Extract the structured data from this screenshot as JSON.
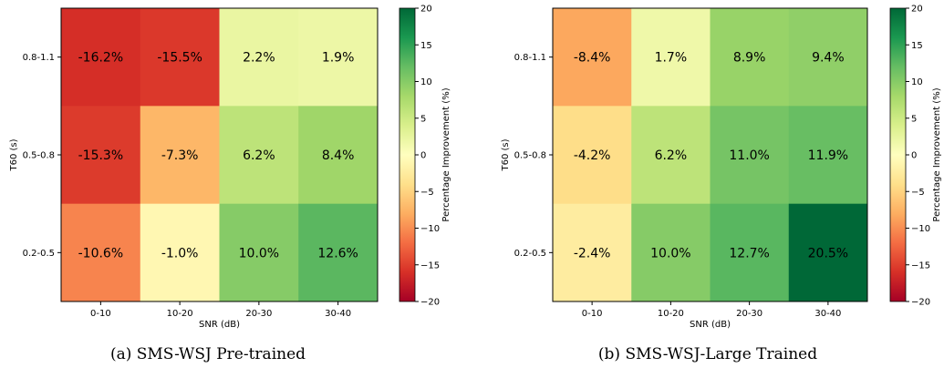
{
  "chart_data": [
    {
      "type": "heatmap",
      "caption": "(a) SMS-WSJ Pre-trained",
      "xlabel": "SNR (dB)",
      "ylabel": "T60 (s)",
      "x_categories": [
        "0-10",
        "10-20",
        "20-30",
        "30-40"
      ],
      "y_categories": [
        "0.8-1.1",
        "0.5-0.8",
        "0.2-0.5"
      ],
      "values": [
        [
          -16.2,
          -15.5,
          2.2,
          1.9
        ],
        [
          -15.3,
          -7.3,
          6.2,
          8.4
        ],
        [
          -10.6,
          -1.0,
          10.0,
          12.6
        ]
      ],
      "cell_labels": [
        [
          "-16.2%",
          "-15.5%",
          "2.2%",
          "1.9%"
        ],
        [
          "-15.3%",
          "-7.3%",
          "6.2%",
          "8.4%"
        ],
        [
          "-10.6%",
          "-1.0%",
          "10.0%",
          "12.6%"
        ]
      ],
      "colorbar": {
        "label": "Percentage Improvement (%)",
        "range": [
          -20,
          20
        ],
        "ticks": [
          "20",
          "15",
          "10",
          "5",
          "0",
          "−5",
          "−10",
          "−15",
          "−20"
        ],
        "colormap": "RdYlGn"
      }
    },
    {
      "type": "heatmap",
      "caption": "(b) SMS-WSJ-Large Trained",
      "xlabel": "SNR (dB)",
      "ylabel": "T60 (s)",
      "x_categories": [
        "0-10",
        "10-20",
        "20-30",
        "30-40"
      ],
      "y_categories": [
        "0.8-1.1",
        "0.5-0.8",
        "0.2-0.5"
      ],
      "values": [
        [
          -8.4,
          1.7,
          8.9,
          9.4
        ],
        [
          -4.2,
          6.2,
          11.0,
          11.9
        ],
        [
          -2.4,
          10.0,
          12.7,
          20.5
        ]
      ],
      "cell_labels": [
        [
          "-8.4%",
          "1.7%",
          "8.9%",
          "9.4%"
        ],
        [
          "-4.2%",
          "6.2%",
          "11.0%",
          "11.9%"
        ],
        [
          "-2.4%",
          "10.0%",
          "12.7%",
          "20.5%"
        ]
      ],
      "colorbar": {
        "label": "Percentage Improvement (%)",
        "range": [
          -20,
          20
        ],
        "ticks": [
          "20",
          "15",
          "10",
          "5",
          "0",
          "−5",
          "−10",
          "−15",
          "−20"
        ],
        "colormap": "RdYlGn"
      }
    }
  ]
}
